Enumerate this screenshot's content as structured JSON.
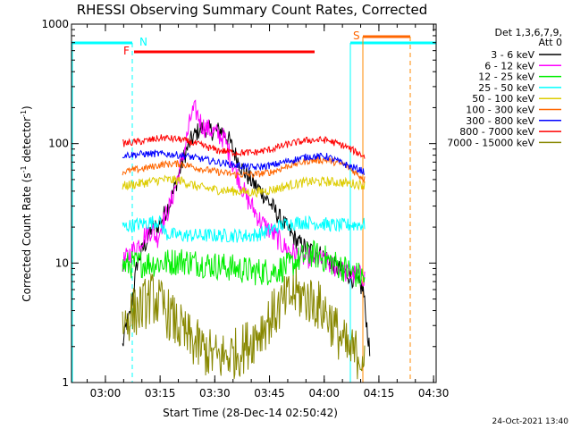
{
  "chart_data": {
    "type": "line",
    "title": "RHESSI Observing Summary Count Rates, Corrected",
    "xlabel": "Start Time (28-Dec-14 02:50:42)",
    "ylabel": "Corrected Count Rate (s",
    "ylabel_sup1": "-1",
    "ylabel_mid": " detector",
    "ylabel_sup2": "-1",
    "ylabel_end": ")",
    "y_scale": "log",
    "ylim": [
      1,
      1000
    ],
    "y_ticks": [
      {
        "value": 1,
        "label": "1"
      },
      {
        "value": 10,
        "label": "10"
      },
      {
        "value": 100,
        "label": "100"
      },
      {
        "value": 1000,
        "label": "1000"
      }
    ],
    "xlim_minutes": [
      0,
      100
    ],
    "x_ticks": [
      {
        "minute": 9.3,
        "label": "03:00"
      },
      {
        "minute": 24.3,
        "label": "03:15"
      },
      {
        "minute": 39.3,
        "label": "03:30"
      },
      {
        "minute": 54.3,
        "label": "03:45"
      },
      {
        "minute": 69.3,
        "label": "04:00"
      },
      {
        "minute": 84.3,
        "label": "04:15"
      },
      {
        "minute": 99.3,
        "label": "04:30"
      }
    ],
    "legend": {
      "placement": "right",
      "header_line1": "Det 1,3,6,7,9,",
      "header_line2": "Att 0"
    },
    "series": [
      {
        "name": "3 - 6 keV",
        "color": "#000000",
        "points": [
          [
            14,
            2
          ],
          [
            15,
            3
          ],
          [
            16,
            3.6
          ],
          [
            17,
            6
          ],
          [
            18,
            10
          ],
          [
            19.5,
            13
          ],
          [
            21,
            16
          ],
          [
            22,
            20
          ],
          [
            23.5,
            20
          ],
          [
            25,
            24
          ],
          [
            27,
            32
          ],
          [
            29,
            50
          ],
          [
            31,
            80
          ],
          [
            33,
            110
          ],
          [
            35,
            130
          ],
          [
            37,
            135
          ],
          [
            39,
            125
          ],
          [
            41,
            130
          ],
          [
            43,
            110
          ],
          [
            45,
            80
          ],
          [
            47,
            60
          ],
          [
            50,
            46
          ],
          [
            52,
            40
          ],
          [
            55,
            30
          ],
          [
            57,
            24
          ],
          [
            60,
            18
          ],
          [
            62,
            15
          ],
          [
            65,
            13
          ],
          [
            68,
            12
          ],
          [
            70,
            11
          ],
          [
            73,
            9
          ],
          [
            76,
            8
          ],
          [
            78,
            7
          ],
          [
            80,
            6
          ],
          [
            82,
            1.5
          ]
        ]
      },
      {
        "name": "6 - 12 keV",
        "color": "#ff00ff",
        "points": [
          [
            14,
            10
          ],
          [
            16,
            12
          ],
          [
            18,
            14
          ],
          [
            20,
            17
          ],
          [
            22,
            19
          ],
          [
            23.5,
            16
          ],
          [
            25,
            22
          ],
          [
            27,
            30
          ],
          [
            29,
            50
          ],
          [
            31,
            90
          ],
          [
            33,
            180
          ],
          [
            34,
            190
          ],
          [
            36,
            140
          ],
          [
            38,
            130
          ],
          [
            40,
            120
          ],
          [
            42,
            110
          ],
          [
            44,
            70
          ],
          [
            46,
            50
          ],
          [
            48,
            35
          ],
          [
            50,
            28
          ],
          [
            52,
            22
          ],
          [
            55,
            18
          ],
          [
            58,
            14
          ],
          [
            61,
            12
          ],
          [
            64,
            11
          ],
          [
            67,
            11
          ],
          [
            70,
            10
          ],
          [
            73,
            9
          ],
          [
            76,
            8
          ],
          [
            79,
            8
          ],
          [
            80.5,
            7.5
          ]
        ]
      },
      {
        "name": "12 - 25 keV",
        "color": "#00ee00",
        "points": [
          [
            14,
            9.5
          ],
          [
            20,
            10
          ],
          [
            25,
            10
          ],
          [
            30,
            10.5
          ],
          [
            35,
            10
          ],
          [
            40,
            9.5
          ],
          [
            45,
            9
          ],
          [
            50,
            8.5
          ],
          [
            55,
            8.5
          ],
          [
            60,
            9.5
          ],
          [
            63,
            11
          ],
          [
            66,
            12
          ],
          [
            69,
            11
          ],
          [
            72,
            10
          ],
          [
            75,
            9
          ],
          [
            78,
            8
          ],
          [
            80.5,
            7.5
          ]
        ]
      },
      {
        "name": "25 - 50 keV",
        "color": "#00ffff",
        "points": [
          [
            14,
            20
          ],
          [
            18,
            21
          ],
          [
            22,
            22
          ],
          [
            24,
            22.5
          ],
          [
            26,
            17.5
          ],
          [
            30,
            17
          ],
          [
            35,
            17
          ],
          [
            40,
            17
          ],
          [
            45,
            17
          ],
          [
            50,
            17
          ],
          [
            54,
            18.5
          ],
          [
            58,
            21
          ],
          [
            63,
            22
          ],
          [
            68,
            21.5
          ],
          [
            73,
            20.5
          ],
          [
            78,
            21
          ],
          [
            80.5,
            21
          ]
        ]
      },
      {
        "name": "50 - 100 keV",
        "color": "#ddcc00",
        "points": [
          [
            14,
            44
          ],
          [
            20,
            47
          ],
          [
            25,
            50
          ],
          [
            30,
            49
          ],
          [
            35,
            43
          ],
          [
            40,
            41
          ],
          [
            45,
            40
          ],
          [
            50,
            39
          ],
          [
            55,
            41
          ],
          [
            60,
            45
          ],
          [
            65,
            48
          ],
          [
            70,
            48
          ],
          [
            75,
            47
          ],
          [
            80.5,
            45
          ]
        ]
      },
      {
        "name": "100 - 300 keV",
        "color": "#ff6600",
        "points": [
          [
            14,
            58
          ],
          [
            20,
            62
          ],
          [
            25,
            67
          ],
          [
            30,
            68
          ],
          [
            35,
            62
          ],
          [
            40,
            58
          ],
          [
            45,
            55
          ],
          [
            50,
            55
          ],
          [
            55,
            58
          ],
          [
            60,
            66
          ],
          [
            65,
            72
          ],
          [
            70,
            73
          ],
          [
            75,
            66
          ],
          [
            80.5,
            50
          ]
        ]
      },
      {
        "name": "300 - 800 keV",
        "color": "#0000ff",
        "points": [
          [
            14,
            80
          ],
          [
            20,
            82
          ],
          [
            25,
            82
          ],
          [
            30,
            80
          ],
          [
            35,
            75
          ],
          [
            40,
            70
          ],
          [
            45,
            66
          ],
          [
            50,
            63
          ],
          [
            55,
            66
          ],
          [
            60,
            72
          ],
          [
            65,
            78
          ],
          [
            70,
            78
          ],
          [
            75,
            67
          ],
          [
            80.5,
            58
          ]
        ]
      },
      {
        "name": "800 - 7000 keV",
        "color": "#ff0000",
        "points": [
          [
            14,
            100
          ],
          [
            20,
            105
          ],
          [
            25,
            112
          ],
          [
            30,
            108
          ],
          [
            35,
            98
          ],
          [
            40,
            88
          ],
          [
            45,
            84
          ],
          [
            50,
            84
          ],
          [
            55,
            90
          ],
          [
            60,
            100
          ],
          [
            65,
            107
          ],
          [
            70,
            107
          ],
          [
            75,
            95
          ],
          [
            80.5,
            78
          ]
        ]
      },
      {
        "name": "7000 - 15000 keV",
        "color": "#888800",
        "points": [
          [
            14,
            3
          ],
          [
            16,
            3.7
          ],
          [
            19,
            4.2
          ],
          [
            22,
            5.2
          ],
          [
            25,
            4.3
          ],
          [
            28,
            3.3
          ],
          [
            31,
            2.5
          ],
          [
            34,
            2.1
          ],
          [
            37,
            1.8
          ],
          [
            40,
            1.6
          ],
          [
            43,
            1.7
          ],
          [
            46,
            1.8
          ],
          [
            49,
            2.2
          ],
          [
            52,
            2.8
          ],
          [
            55,
            3.6
          ],
          [
            58,
            4.6
          ],
          [
            61,
            5.6
          ],
          [
            64,
            5.2
          ],
          [
            67,
            4.6
          ],
          [
            70,
            3.8
          ],
          [
            73,
            2.6
          ],
          [
            76,
            1.8
          ],
          [
            80.5,
            1.7
          ]
        ]
      }
    ],
    "flags": {
      "N_label": "N",
      "F_label": "F",
      "S_label": "S"
    },
    "colors": {
      "frame": "#000000",
      "flag_N": "#00ffff",
      "flag_F": "#ff0000",
      "flag_S": "#ff6600",
      "gap_line": "#00ffff",
      "saa_line": "#ff8800"
    }
  },
  "footer": {
    "date": "24-Oct-2021 13:40"
  }
}
